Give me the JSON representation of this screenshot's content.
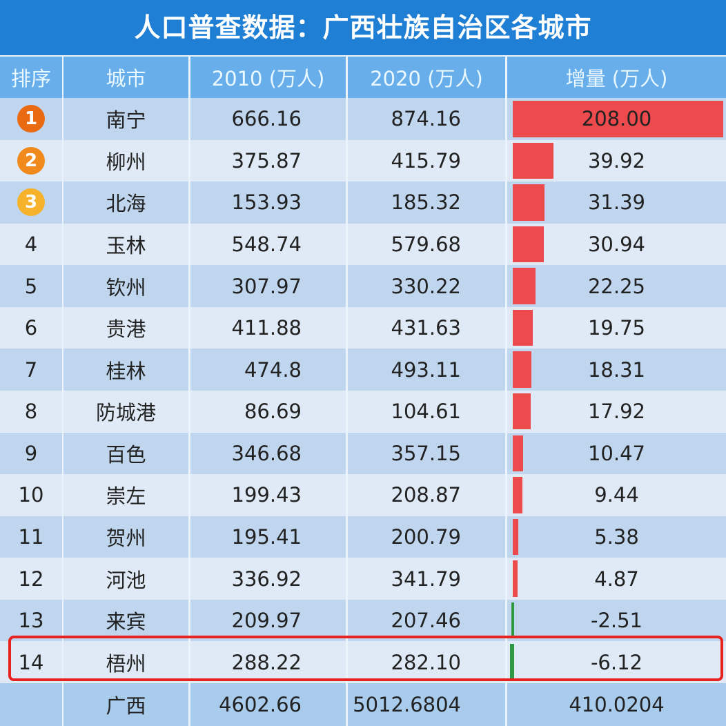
{
  "title": "人口普查数据：广西壮族自治区各城市",
  "colors": {
    "title_bg": "#1f7fd4",
    "header_bg": "#67aeea",
    "bar_positive": "#ec4a4c",
    "bar_negative": "#2e9a44",
    "highlight": "#e8231f",
    "badge": [
      "#ea6a12",
      "#f08a1c",
      "#f5b22a"
    ]
  },
  "chart_data": {
    "type": "table",
    "columns": [
      "排序",
      "城市",
      "2010 (万人)",
      "2020 (万人)",
      "增量 (万人)"
    ],
    "rows": [
      {
        "rank": "1",
        "city": "南宁",
        "y2010": "666.16",
        "y2020": "874.16",
        "delta": "208.00"
      },
      {
        "rank": "2",
        "city": "柳州",
        "y2010": "375.87",
        "y2020": "415.79",
        "delta": "39.92"
      },
      {
        "rank": "3",
        "city": "北海",
        "y2010": "153.93",
        "y2020": "185.32",
        "delta": "31.39"
      },
      {
        "rank": "4",
        "city": "玉林",
        "y2010": "548.74",
        "y2020": "579.68",
        "delta": "30.94"
      },
      {
        "rank": "5",
        "city": "钦州",
        "y2010": "307.97",
        "y2020": "330.22",
        "delta": "22.25"
      },
      {
        "rank": "6",
        "city": "贵港",
        "y2010": "411.88",
        "y2020": "431.63",
        "delta": "19.75"
      },
      {
        "rank": "7",
        "city": "桂林",
        "y2010": "474.8",
        "y2020": "493.11",
        "delta": "18.31"
      },
      {
        "rank": "8",
        "city": "防城港",
        "y2010": "86.69",
        "y2020": "104.61",
        "delta": "17.92"
      },
      {
        "rank": "9",
        "city": "百色",
        "y2010": "346.68",
        "y2020": "357.15",
        "delta": "10.47"
      },
      {
        "rank": "10",
        "city": "崇左",
        "y2010": "199.43",
        "y2020": "208.87",
        "delta": "9.44"
      },
      {
        "rank": "11",
        "city": "贺州",
        "y2010": "195.41",
        "y2020": "200.79",
        "delta": "5.38"
      },
      {
        "rank": "12",
        "city": "河池",
        "y2010": "336.92",
        "y2020": "341.79",
        "delta": "4.87"
      },
      {
        "rank": "13",
        "city": "来宾",
        "y2010": "209.97",
        "y2020": "207.46",
        "delta": "-2.51"
      },
      {
        "rank": "14",
        "city": "梧州",
        "y2010": "288.22",
        "y2020": "282.10",
        "delta": "-6.12",
        "highlighted": true
      }
    ],
    "total": {
      "city": "广西",
      "y2010": "4602.66",
      "y2020": "5012.6804",
      "delta": "410.0204"
    }
  }
}
